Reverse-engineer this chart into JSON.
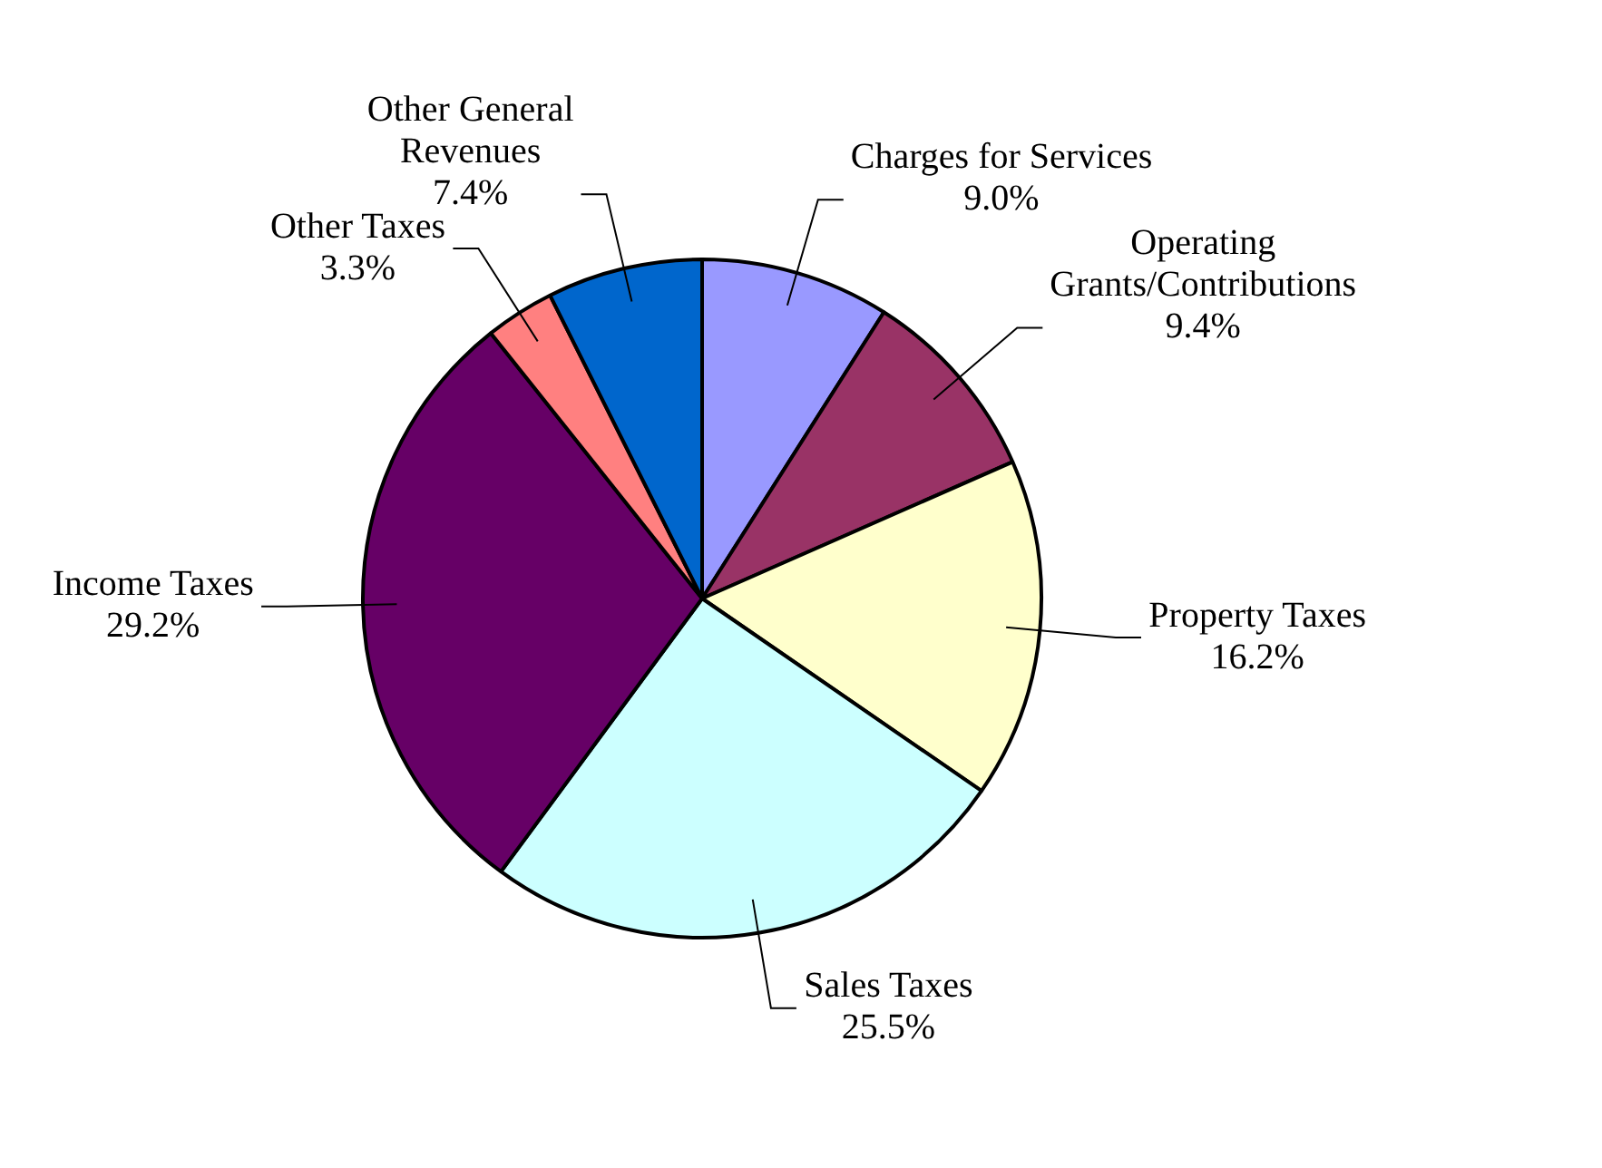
{
  "chart_data": {
    "type": "pie",
    "categories": [
      "Charges for Services",
      "Operating Grants/Contributions",
      "Property Taxes",
      "Sales Taxes",
      "Income Taxes",
      "Other Taxes",
      "Other General Revenues"
    ],
    "values": [
      9.0,
      9.4,
      16.2,
      25.5,
      29.2,
      3.3,
      7.4
    ],
    "colors": [
      "#9999ff",
      "#993366",
      "#ffffcc",
      "#ccffff",
      "#660066",
      "#ff8080",
      "#0066cc"
    ],
    "value_labels": [
      "9.0%",
      "9.4%",
      "16.2%",
      "25.5%",
      "29.2%",
      "3.3%",
      "7.4%"
    ],
    "legend": false
  }
}
